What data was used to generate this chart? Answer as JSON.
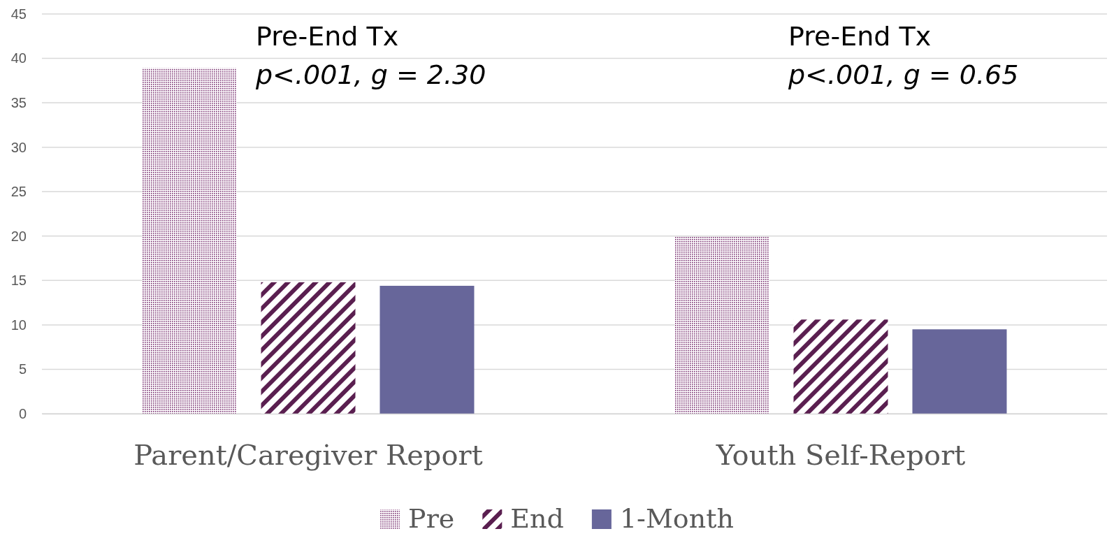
{
  "chart_data": {
    "type": "bar",
    "categories": [
      "Parent/Caregiver Report",
      "Youth Self-Report"
    ],
    "series": [
      {
        "name": "Pre",
        "color": "#7b3372",
        "values": [
          38.9,
          19.9
        ]
      },
      {
        "name": "End",
        "color": "#5a1f50",
        "values": [
          14.8,
          10.6
        ]
      },
      {
        "name": "1-Month",
        "color": "#67669a",
        "values": [
          14.4,
          9.5
        ]
      }
    ],
    "ylim": [
      0,
      45
    ],
    "yticks": [
      0,
      5,
      10,
      15,
      20,
      25,
      30,
      35,
      40,
      45
    ],
    "grid": "y",
    "legend": "bottom",
    "annotations": [
      "Pre-End Tx",
      "p<.001, g = 2.30",
      "Pre-End Tx",
      "p<.001, g = 0.65"
    ]
  }
}
